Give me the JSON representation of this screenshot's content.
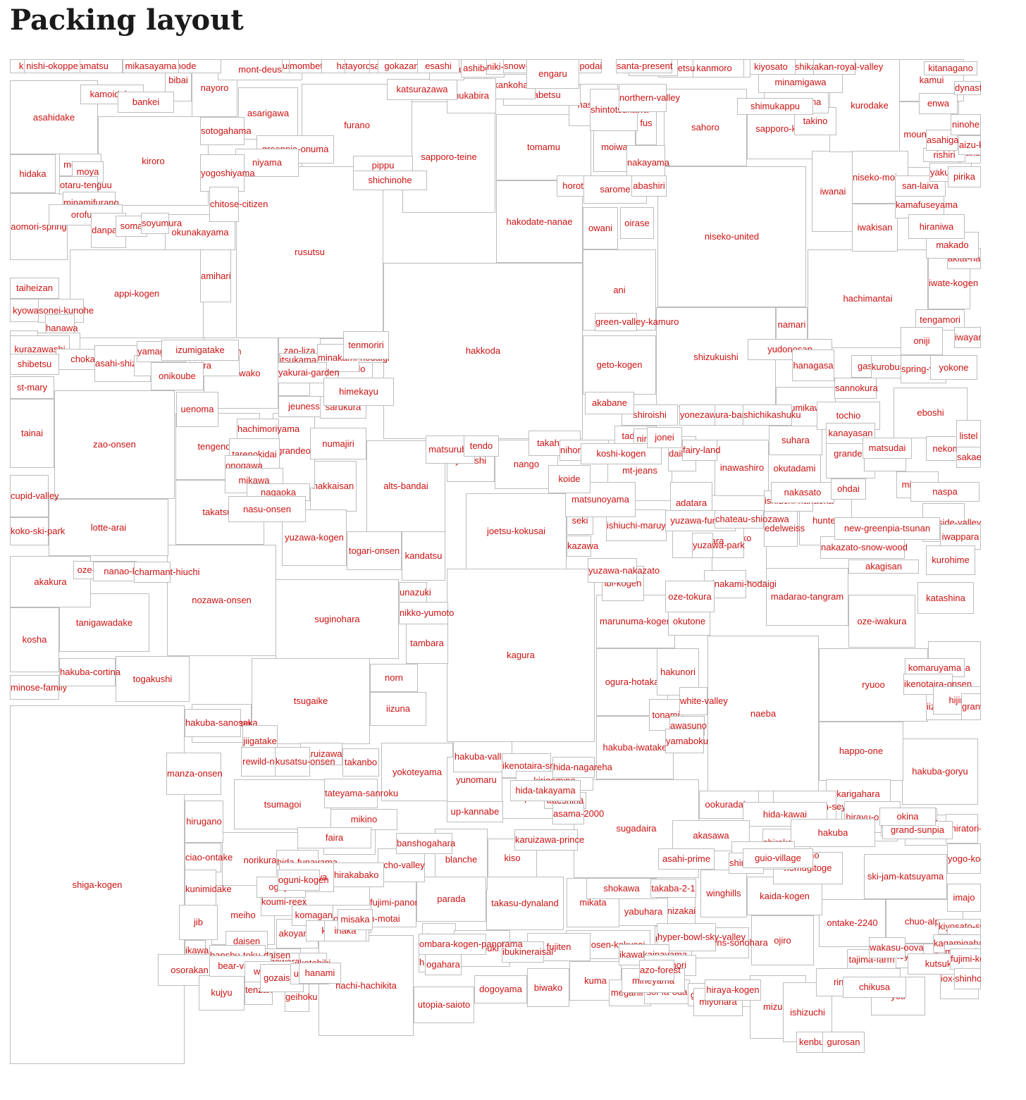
{
  "title": "Packing layout",
  "colors": {
    "box_border": "#bdbdbd",
    "label": "#cc1111",
    "title": "#1a1a1a"
  },
  "boxes": [
    {
      "label": "shiga-kogen"
    },
    {
      "label": "kagura"
    },
    {
      "label": "hakkoda"
    },
    {
      "label": "rusutsu"
    },
    {
      "label": "niseko-united"
    },
    {
      "label": "naeba"
    },
    {
      "label": "sapporo-teine"
    },
    {
      "label": "shizukuishi"
    },
    {
      "label": "hachimantai"
    },
    {
      "label": "appi-kogen"
    },
    {
      "label": "zao-onsen"
    },
    {
      "label": "nozawa-onsen"
    },
    {
      "label": "joetsu-kokusai"
    },
    {
      "label": "suginohara"
    },
    {
      "label": "tsugaike"
    },
    {
      "label": "sugadaira"
    },
    {
      "label": "ryuoo"
    },
    {
      "label": "kiroro"
    },
    {
      "label": "hakodate-nanae"
    },
    {
      "label": "asahidake"
    },
    {
      "label": "tomamu"
    },
    {
      "label": "furano"
    },
    {
      "label": "lotte-arai"
    },
    {
      "label": "sahoro"
    },
    {
      "label": "alts-bandai"
    },
    {
      "label": "tsumagoi"
    },
    {
      "label": "hakuba-goryu"
    },
    {
      "label": "happo-one"
    },
    {
      "label": "ani"
    },
    {
      "label": "tanigawadake"
    },
    {
      "label": "takatsue"
    },
    {
      "label": "tengendai"
    },
    {
      "label": "yokoteyama"
    },
    {
      "label": "tazawako"
    },
    {
      "label": "sapporo-kokusai"
    },
    {
      "label": "kosha"
    },
    {
      "label": "akakura"
    },
    {
      "label": "hachi-hachikita"
    },
    {
      "label": "madarao-tangram"
    },
    {
      "label": "maiko"
    },
    {
      "label": "eboshi"
    },
    {
      "label": "togakushi"
    },
    {
      "label": "hakuba-iwatake"
    },
    {
      "label": "ogura-hotaka"
    },
    {
      "label": "takasu-dynaland"
    },
    {
      "label": "asarigawa"
    },
    {
      "label": "geto-kogen"
    },
    {
      "label": "tainai"
    },
    {
      "label": "mt-jeans"
    },
    {
      "label": "iwanai"
    },
    {
      "label": "marunuma-kogen"
    },
    {
      "label": "hakkaisan"
    },
    {
      "label": "grandeo"
    },
    {
      "label": "yuzawa-kogen"
    },
    {
      "label": "nango"
    },
    {
      "label": "norikura"
    },
    {
      "label": "blanche"
    },
    {
      "label": "meiho"
    },
    {
      "label": "ski-jam-katsuyama"
    },
    {
      "label": "ontake-2240"
    },
    {
      "label": "chuo-alps"
    },
    {
      "label": "winghills"
    },
    {
      "label": "ojiro"
    },
    {
      "label": "kaida-kogen"
    },
    {
      "label": "nomugitoge"
    },
    {
      "label": "kurodake"
    },
    {
      "label": "mount-racey"
    },
    {
      "label": "inawashiro"
    },
    {
      "label": "hakunori"
    },
    {
      "label": "okutadami"
    },
    {
      "label": "sumikawa"
    },
    {
      "label": "seaside-valley"
    },
    {
      "label": "hunter"
    },
    {
      "label": "oze-iwakura"
    },
    {
      "label": "kawaba"
    },
    {
      "label": "iizuna-kogen"
    },
    {
      "label": "moiwa"
    },
    {
      "label": "nayoro"
    },
    {
      "label": "kamui"
    },
    {
      "label": "bibai"
    },
    {
      "label": "niseko-moiwa"
    },
    {
      "label": "iwakisan"
    },
    {
      "label": "kamafuseyama"
    },
    {
      "label": "iwate-kogen"
    },
    {
      "label": "namari"
    },
    {
      "label": "owani"
    },
    {
      "label": "oirase"
    },
    {
      "label": "fus"
    },
    {
      "label": "nakayama"
    },
    {
      "label": "hidaka"
    },
    {
      "label": "aomori-spring"
    },
    {
      "label": "okunakayama"
    },
    {
      "label": "amihari"
    },
    {
      "label": "taiheizan"
    },
    {
      "label": "kyowa"
    },
    {
      "label": "st-mary"
    },
    {
      "label": "cupid-valley"
    },
    {
      "label": "koko-ski-park"
    },
    {
      "label": "minose-family"
    },
    {
      "label": "hakuba-cortina"
    },
    {
      "label": "yakebitaiyama"
    },
    {
      "label": "norn"
    },
    {
      "label": "iizuna"
    },
    {
      "label": "tambara"
    },
    {
      "label": "kandatsu"
    },
    {
      "label": "togari-onsen"
    },
    {
      "label": "unazuki"
    },
    {
      "label": "nikko-yumoto"
    },
    {
      "label": "numajiri"
    },
    {
      "label": "budo"
    },
    {
      "label": "zao-liza"
    },
    {
      "label": "wakabuna"
    },
    {
      "label": "jeunesse"
    },
    {
      "label": "sarukura"
    },
    {
      "label": "itsukamachi"
    },
    {
      "label": "yakushi"
    },
    {
      "label": "takahata"
    },
    {
      "label": "adatara"
    },
    {
      "label": "suhara"
    },
    {
      "label": "grandee"
    },
    {
      "label": "muica"
    },
    {
      "label": "minowa"
    },
    {
      "label": "nekoma"
    },
    {
      "label": "naspa"
    },
    {
      "label": "edelweiss"
    },
    {
      "label": "seki"
    },
    {
      "label": "kazawa"
    },
    {
      "label": "yunomaru"
    },
    {
      "label": "pilatus"
    },
    {
      "label": "kiso"
    },
    {
      "label": "fujimi-panorama"
    },
    {
      "label": "parada"
    },
    {
      "label": "hirugano"
    },
    {
      "label": "ciao-ontake"
    },
    {
      "label": "kunimidake"
    },
    {
      "label": "jib"
    },
    {
      "label": "ikawa-riverwell"
    },
    {
      "label": "osorakan"
    },
    {
      "label": "kujyu"
    },
    {
      "label": "tenzan"
    },
    {
      "label": "geihoku"
    },
    {
      "label": "utopia-saioto"
    },
    {
      "label": "dogoyama"
    },
    {
      "label": "biwako"
    },
    {
      "label": "kuma"
    },
    {
      "label": "megahira"
    },
    {
      "label": "sol-fa-oda"
    },
    {
      "label": "gokase"
    },
    {
      "label": "asahi-tengston"
    },
    {
      "label": "mizuho"
    },
    {
      "label": "ishizuchi"
    },
    {
      "label": "yeti"
    },
    {
      "label": "nekoyama"
    },
    {
      "label": "geihoku-osa"
    },
    {
      "label": "iox-arosa"
    },
    {
      "label": "karigahara"
    },
    {
      "label": "kurumayama"
    },
    {
      "label": "hida-honoki"
    },
    {
      "label": "shiratori-kogen"
    },
    {
      "label": "yogo-kogen"
    },
    {
      "label": "imajo"
    },
    {
      "label": "kunizakai"
    },
    {
      "label": "yabuhara"
    },
    {
      "label": "mikata"
    },
    {
      "label": "manba-okukan"
    },
    {
      "label": "heavens-sonohara"
    },
    {
      "label": "hyonosen-kokusai"
    },
    {
      "label": "fujiten"
    },
    {
      "label": "chausuyama"
    },
    {
      "label": "hakodate-yama"
    },
    {
      "label": "okuibuki"
    },
    {
      "label": "akoyama"
    },
    {
      "label": "koumi-reex"
    },
    {
      "label": "echo-valley"
    },
    {
      "label": "chateraise"
    },
    {
      "label": "hida-funayama"
    },
    {
      "label": "shirakabako"
    },
    {
      "label": "kanazawa"
    },
    {
      "label": "karuizawa"
    },
    {
      "label": "takanbo"
    },
    {
      "label": "tateyama-sanroku"
    },
    {
      "label": "manza-onsen"
    },
    {
      "label": "hakuba-sanosaka"
    },
    {
      "label": "jiigatake"
    },
    {
      "label": "rewild-ninja"
    },
    {
      "label": "kusatsu-onsen"
    },
    {
      "label": "hakuba-valley"
    },
    {
      "label": "ikenotaira-snow-park"
    },
    {
      "label": "kirigamine"
    },
    {
      "label": "tateshina"
    },
    {
      "label": "asama-2000"
    },
    {
      "label": "ookuradake"
    },
    {
      "label": "sam-hakusan-seymour"
    },
    {
      "label": "hida-kawai"
    },
    {
      "label": "hirayu-onsen"
    },
    {
      "label": "yachihokogen"
    },
    {
      "label": "shirakaba-kokusai"
    },
    {
      "label": "akasawa"
    },
    {
      "label": "tonami"
    },
    {
      "label": "awasuno"
    },
    {
      "label": "yamaboku"
    },
    {
      "label": "white-valley"
    },
    {
      "label": "okutone"
    },
    {
      "label": "minakami-hodaigi"
    },
    {
      "label": "oze-tokura"
    },
    {
      "label": "ibi-kogen"
    },
    {
      "label": "yuzawa-nakazato"
    },
    {
      "label": "fujiwara"
    },
    {
      "label": "yuzawa-park"
    },
    {
      "label": "ishiuchi-maruyama"
    },
    {
      "label": "yuzawa-funrun"
    },
    {
      "label": "chateau-shiozawa"
    },
    {
      "label": "matsunoyama"
    },
    {
      "label": "koide"
    },
    {
      "label": "daikura"
    },
    {
      "label": "fairy-land"
    },
    {
      "label": "tadami"
    },
    {
      "label": "ninox"
    },
    {
      "label": "yonezawa"
    },
    {
      "label": "ura-bandai"
    },
    {
      "label": "shichikashuku"
    },
    {
      "label": "shiroishi"
    },
    {
      "label": "akabane"
    },
    {
      "label": "green-valley-kamuro"
    },
    {
      "label": "yudonosan"
    },
    {
      "label": "hanagasa"
    },
    {
      "label": "gassan"
    },
    {
      "label": "kurobushi"
    },
    {
      "label": "spring-valley"
    },
    {
      "label": "yokone"
    },
    {
      "label": "sannokura"
    },
    {
      "label": "tochio"
    },
    {
      "label": "kanayasan"
    },
    {
      "label": "matsudai"
    },
    {
      "label": "listel"
    },
    {
      "label": "sakae-club"
    },
    {
      "label": "iwappara"
    },
    {
      "label": "nakazato-snow-wood"
    },
    {
      "label": "new-greenpia-tsunan"
    },
    {
      "label": "kurohime"
    },
    {
      "label": "katashina"
    },
    {
      "label": "komaruyama"
    },
    {
      "label": "ikenotaira-onsen"
    },
    {
      "label": "akagisan"
    },
    {
      "label": "hijiri"
    },
    {
      "label": "granview"
    },
    {
      "label": "ishiuchi-hanaoka"
    },
    {
      "label": "nakasato"
    },
    {
      "label": "ohdai"
    },
    {
      "label": "tengamori"
    },
    {
      "label": "oniji"
    },
    {
      "label": "iwayama"
    },
    {
      "label": "akita-hachimantai"
    },
    {
      "label": "makado"
    },
    {
      "label": "hiraniwa"
    },
    {
      "label": "san-laiva"
    },
    {
      "label": "yakuraishi"
    },
    {
      "label": "pirika"
    },
    {
      "label": "hakugin"
    },
    {
      "label": "rishiri"
    },
    {
      "label": "asahigaoka"
    },
    {
      "label": "aizu-kogen"
    },
    {
      "label": "ninohe"
    },
    {
      "label": "enwa"
    },
    {
      "label": "dynasty"
    },
    {
      "label": "kitanagano"
    },
    {
      "label": "takino"
    },
    {
      "label": "haginoyama"
    },
    {
      "label": "minamigawa"
    },
    {
      "label": "shimukappu"
    },
    {
      "label": "greenland-white"
    },
    {
      "label": "ishikari-heigen"
    },
    {
      "label": "akan-royal-valley"
    },
    {
      "label": "kiyosato"
    },
    {
      "label": "biei"
    },
    {
      "label": "kanmoro"
    },
    {
      "label": "ishibetsu"
    },
    {
      "label": "kitami"
    },
    {
      "label": "santa-present"
    },
    {
      "label": "kaimpodai"
    },
    {
      "label": "hashika"
    },
    {
      "label": "shintotsukawa"
    },
    {
      "label": "northern-valley"
    },
    {
      "label": "unabetsu"
    },
    {
      "label": "akankohan"
    },
    {
      "label": "nukabira"
    },
    {
      "label": "katsurazawa"
    },
    {
      "label": "shintokuyama"
    },
    {
      "label": "ashibetsu"
    },
    {
      "label": "niki-chomin"
    },
    {
      "label": "snow-cruise-onze"
    },
    {
      "label": "engaru"
    },
    {
      "label": "horotachi"
    },
    {
      "label": "sarome"
    },
    {
      "label": "abashiri"
    },
    {
      "label": "pippu"
    },
    {
      "label": "shichinohe"
    },
    {
      "label": "greenpia-onuma"
    },
    {
      "label": "niyama"
    },
    {
      "label": "sotogahama"
    },
    {
      "label": "yogoshiyama"
    },
    {
      "label": "chitose-citizen"
    },
    {
      "label": "kamoidake"
    },
    {
      "label": "bankei"
    },
    {
      "label": "memuro"
    },
    {
      "label": "moya"
    },
    {
      "label": "otaru-tenguu"
    },
    {
      "label": "minamifurano"
    },
    {
      "label": "orofure"
    },
    {
      "label": "danpara"
    },
    {
      "label": "soma"
    },
    {
      "label": "soyumura"
    },
    {
      "label": "sonei-kunohe"
    },
    {
      "label": "hanawa"
    },
    {
      "label": "suisyo"
    },
    {
      "label": "tsuyama"
    },
    {
      "label": "omagari"
    },
    {
      "label": "yuda"
    },
    {
      "label": "kurazawashi"
    },
    {
      "label": "chokai"
    },
    {
      "label": "asahi-shizenkan"
    },
    {
      "label": "kumimidaira"
    },
    {
      "label": "onikoube"
    },
    {
      "label": "yamagata-akakura-onsen"
    },
    {
      "label": "izumigatake"
    },
    {
      "label": "uenoma"
    },
    {
      "label": "hachimoriyama"
    },
    {
      "label": "tarenokidai"
    },
    {
      "label": "onogawa"
    },
    {
      "label": "mikawa"
    },
    {
      "label": "nagaoka"
    },
    {
      "label": "nasu-onsen"
    },
    {
      "label": "oze-hinomata"
    },
    {
      "label": "nanao-korasa"
    },
    {
      "label": "charmant-hiuchi"
    },
    {
      "label": "minakami-kogen"
    },
    {
      "label": "minakami-hodaigi"
    },
    {
      "label": "tenmoriri"
    },
    {
      "label": "yakurai-garden"
    },
    {
      "label": "himekayu"
    },
    {
      "label": "matsurube"
    },
    {
      "label": "tendo"
    },
    {
      "label": "nihonmatsu-shiozawa"
    },
    {
      "label": "koshi-kogen"
    },
    {
      "label": "jonei"
    },
    {
      "label": "hakuba"
    },
    {
      "label": "grand-sunpia"
    },
    {
      "label": "okina"
    },
    {
      "label": "sam-hakusan-ichirino"
    },
    {
      "label": "asahi-prime"
    },
    {
      "label": "shirakawa"
    },
    {
      "label": "guio-village"
    },
    {
      "label": "shokawa"
    },
    {
      "label": "takaba-2-1"
    },
    {
      "label": "kiyosato-sun-meadows"
    },
    {
      "label": "fukuroumi"
    },
    {
      "label": "kagamigahara"
    },
    {
      "label": "masumizu"
    },
    {
      "label": "kutsuki"
    },
    {
      "label": "fujimi-kogen"
    },
    {
      "label": "shinho-fu"
    },
    {
      "label": "tajima-farm"
    },
    {
      "label": "wakasu-oova"
    },
    {
      "label": "ringo-kyowa"
    },
    {
      "label": "chikusa"
    },
    {
      "label": "miyohara"
    },
    {
      "label": "hiraya-kogen"
    },
    {
      "label": "hyper-bowl-sky-valley"
    },
    {
      "label": "ikawakainayama"
    },
    {
      "label": "kenmori"
    },
    {
      "label": "mineyama"
    },
    {
      "label": "azo-forest"
    },
    {
      "label": "ibukineraisai"
    },
    {
      "label": "ombara-kogen-panorama"
    },
    {
      "label": "ogahara"
    },
    {
      "label": "daisen"
    },
    {
      "label": "mt-rokko"
    },
    {
      "label": "gawara"
    },
    {
      "label": "banshu-toku-daisen"
    },
    {
      "label": "bear-valley"
    },
    {
      "label": "wakasa"
    },
    {
      "label": "gozaisho"
    },
    {
      "label": "umpenji"
    },
    {
      "label": "kotobiki"
    },
    {
      "label": "hanami"
    },
    {
      "label": "oguya"
    },
    {
      "label": "oguni-kogen"
    },
    {
      "label": "komagane"
    },
    {
      "label": "outdoor-in-motai"
    },
    {
      "label": "kuzuryu"
    },
    {
      "label": "inaka"
    },
    {
      "label": "misaka"
    },
    {
      "label": "up-kannabe"
    },
    {
      "label": "mikino"
    },
    {
      "label": "faira"
    },
    {
      "label": "banshogahara"
    },
    {
      "label": "karuizawa-prince"
    },
    {
      "label": "hida-takayama"
    },
    {
      "label": "hida-nagareha"
    },
    {
      "label": "mont-deus"
    },
    {
      "label": "ushidake"
    },
    {
      "label": "mombetsu-ooyama"
    },
    {
      "label": "haizuka"
    },
    {
      "label": "tayoro-hinode"
    },
    {
      "label": "sakuragaoka"
    },
    {
      "label": "gokazan"
    },
    {
      "label": "esashi"
    },
    {
      "label": "wassamu"
    },
    {
      "label": "hoyodai"
    },
    {
      "label": "pinnacle"
    },
    {
      "label": "kuriyama"
    },
    {
      "label": "biiku"
    },
    {
      "label": "otoebope"
    },
    {
      "label": "hinode"
    },
    {
      "label": "uichiro-kokusei"
    },
    {
      "label": "mikasayama"
    },
    {
      "label": "kamifurano"
    },
    {
      "label": "tottori"
    },
    {
      "label": "kinjo"
    },
    {
      "label": "takamatsu"
    },
    {
      "label": "nishi-okoppe"
    },
    {
      "label": "shibetsu"
    },
    {
      "label": "kenbuchi"
    },
    {
      "label": "gurosan"
    }
  ]
}
